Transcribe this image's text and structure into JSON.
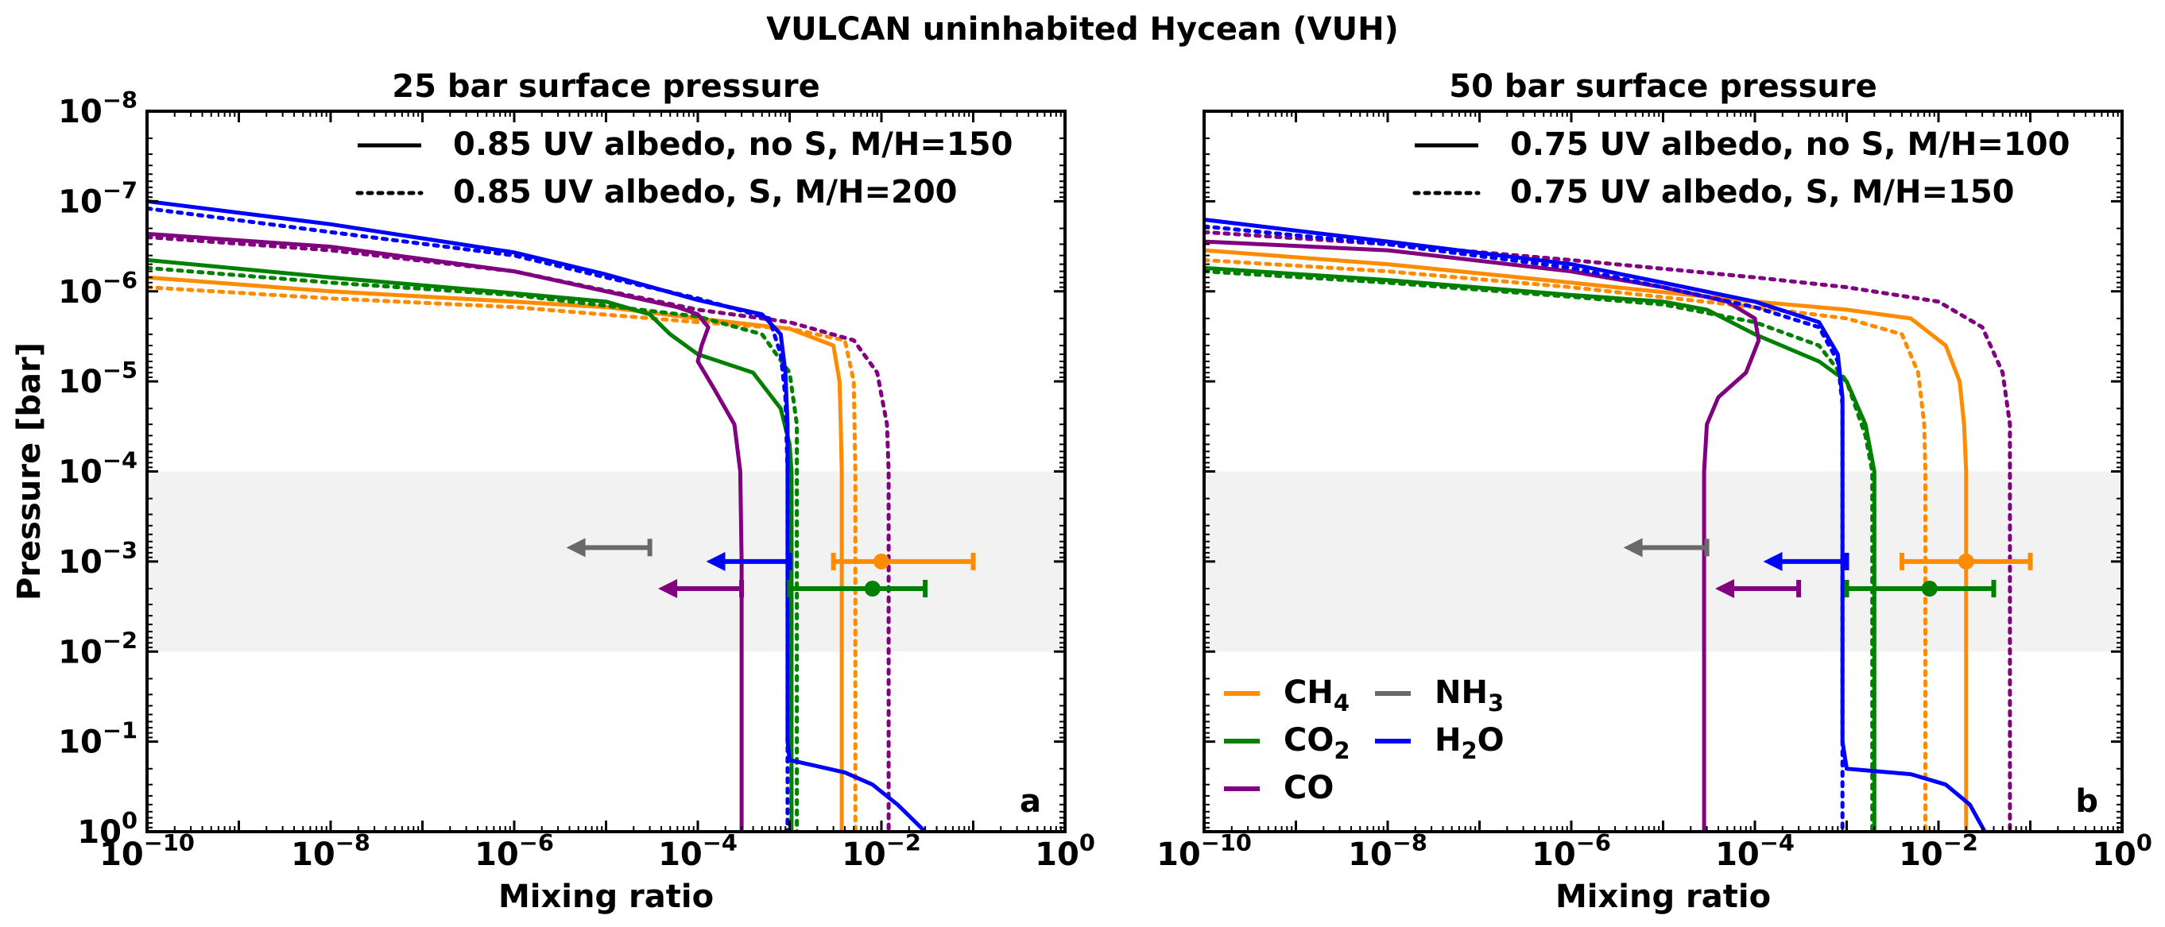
{
  "suptitle": "VULCAN uninhabited Hycean (VUH)",
  "chart_data": [
    {
      "type": "line",
      "title": "25 bar surface pressure",
      "panel_label": "a",
      "xlabel": "Mixing ratio",
      "ylabel": "Pressure [bar]",
      "xscale": "log",
      "yscale": "log",
      "xlim": [
        1e-10,
        1
      ],
      "ylim": [
        1,
        1e-08
      ],
      "x_tick_exponents": [
        -10,
        -8,
        -6,
        -4,
        -2,
        0
      ],
      "y_tick_exponents": [
        -8,
        -7,
        -6,
        -5,
        -4,
        -3,
        -2,
        -1,
        0
      ],
      "shaded_pressure_band": [
        0.0001,
        0.01
      ],
      "style_legend": [
        {
          "style": "solid",
          "label": "0.85 UV albedo, no S, M/H=150"
        },
        {
          "style": "dotted",
          "label": "0.85 UV albedo, S, M/H=200"
        }
      ],
      "series": [
        {
          "species": "CH4",
          "style": "solid",
          "color": "#ff8c00",
          "points": [
            [
              1e-10,
              7e-07
            ],
            [
              1e-08,
              1e-06
            ],
            [
              1e-06,
              1.3e-06
            ],
            [
              1e-05,
              1.5e-06
            ],
            [
              0.0001,
              2e-06
            ],
            [
              0.001,
              2.6e-06
            ],
            [
              0.003,
              4e-06
            ],
            [
              0.0035,
              1e-05
            ],
            [
              0.0036,
              3e-05
            ],
            [
              0.0037,
              0.0001
            ],
            [
              0.0037,
              1
            ]
          ]
        },
        {
          "species": "CH4",
          "style": "dotted",
          "color": "#ff8c00",
          "points": [
            [
              1e-10,
              9e-07
            ],
            [
              1e-08,
              1.2e-06
            ],
            [
              1e-06,
              1.5e-06
            ],
            [
              0.0001,
              2.2e-06
            ],
            [
              0.001,
              2.6e-06
            ],
            [
              0.004,
              3.5e-06
            ],
            [
              0.005,
              1e-05
            ],
            [
              0.0052,
              0.0001
            ],
            [
              0.0052,
              1
            ]
          ]
        },
        {
          "species": "CO2",
          "style": "solid",
          "color": "#008000",
          "points": [
            [
              1e-10,
              4.5e-07
            ],
            [
              1e-08,
              7e-07
            ],
            [
              1e-06,
              1.05e-06
            ],
            [
              1e-05,
              1.3e-06
            ],
            [
              3e-05,
              1.8e-06
            ],
            [
              5e-05,
              3e-06
            ],
            [
              0.0001,
              5e-06
            ],
            [
              0.0004,
              8e-06
            ],
            [
              0.0008,
              2e-05
            ],
            [
              0.001,
              5e-05
            ],
            [
              0.00105,
              0.0001
            ],
            [
              0.00105,
              1
            ]
          ]
        },
        {
          "species": "CO2",
          "style": "dotted",
          "color": "#008000",
          "points": [
            [
              1e-10,
              5.5e-07
            ],
            [
              1e-08,
              8e-07
            ],
            [
              1e-06,
              1.1e-06
            ],
            [
              0.0001,
              1.9e-06
            ],
            [
              0.0005,
              3e-06
            ],
            [
              0.001,
              8e-06
            ],
            [
              0.0012,
              3e-05
            ],
            [
              0.0012,
              0.0001
            ],
            [
              0.0012,
              1
            ]
          ]
        },
        {
          "species": "CO",
          "style": "solid",
          "color": "#800080",
          "points": [
            [
              1e-10,
              2.3e-07
            ],
            [
              1e-08,
              3.2e-07
            ],
            [
              1e-06,
              6e-07
            ],
            [
              1e-05,
              1e-06
            ],
            [
              6e-05,
              1.5e-06
            ],
            [
              0.0001,
              1.8e-06
            ],
            [
              0.00013,
              2.5e-06
            ],
            [
              0.00011,
              4e-06
            ],
            [
              0.0001,
              6e-06
            ],
            [
              0.00015,
              1.2e-05
            ],
            [
              0.00025,
              3e-05
            ],
            [
              0.00029,
              0.0001
            ],
            [
              0.0003,
              0.001
            ],
            [
              0.0003,
              1
            ]
          ]
        },
        {
          "species": "CO",
          "style": "dotted",
          "color": "#800080",
          "points": [
            [
              1e-10,
              2.5e-07
            ],
            [
              1e-08,
              3.5e-07
            ],
            [
              1e-06,
              6e-07
            ],
            [
              0.0001,
              1.6e-06
            ],
            [
              0.001,
              2.2e-06
            ],
            [
              0.005,
              3.5e-06
            ],
            [
              0.009,
              8e-06
            ],
            [
              0.0115,
              3e-05
            ],
            [
              0.012,
              0.0001
            ],
            [
              0.012,
              1
            ]
          ]
        },
        {
          "species": "H2O",
          "style": "solid",
          "color": "#0000ff",
          "points": [
            [
              1e-10,
              1e-07
            ],
            [
              1e-08,
              1.8e-07
            ],
            [
              1e-06,
              3.7e-07
            ],
            [
              1e-05,
              6.5e-07
            ],
            [
              0.0001,
              1.25e-06
            ],
            [
              0.0005,
              1.8e-06
            ],
            [
              0.0008,
              3e-06
            ],
            [
              0.0009,
              8e-06
            ],
            [
              0.00095,
              3e-05
            ],
            [
              0.00095,
              0.0001
            ],
            [
              0.00095,
              0.1
            ],
            [
              0.001,
              0.16
            ],
            [
              0.004,
              0.22
            ],
            [
              0.008,
              0.3
            ],
            [
              0.015,
              0.5
            ],
            [
              0.03,
              1
            ]
          ]
        },
        {
          "species": "H2O",
          "style": "dotted",
          "color": "#0000ff",
          "points": [
            [
              1e-10,
              1.2e-07
            ],
            [
              1e-08,
              2.2e-07
            ],
            [
              1e-06,
              4e-07
            ],
            [
              1e-05,
              7e-07
            ],
            [
              0.0001,
              1.2e-06
            ],
            [
              0.0006,
              2e-06
            ],
            [
              0.0008,
              5e-06
            ],
            [
              0.0009,
              1.5e-05
            ],
            [
              0.00095,
              0.0001
            ],
            [
              0.00095,
              1
            ]
          ]
        }
      ],
      "observations": [
        {
          "species": "CH4",
          "type": "errorbar",
          "x": 0.01,
          "xerr": [
            0.003,
            0.1
          ],
          "y": 0.001
        },
        {
          "species": "CO2",
          "type": "errorbar",
          "x": 0.008,
          "xerr": [
            0.001,
            0.03
          ],
          "y": 0.002
        },
        {
          "species": "H2O",
          "type": "upper_limit",
          "x": 0.001,
          "y": 0.001
        },
        {
          "species": "CO",
          "type": "upper_limit",
          "x": 0.0003,
          "y": 0.002
        },
        {
          "species": "NH3",
          "type": "upper_limit",
          "x": 3e-05,
          "y": 0.0007
        }
      ]
    },
    {
      "type": "line",
      "title": "50 bar surface pressure",
      "panel_label": "b",
      "xlabel": "Mixing ratio",
      "xscale": "log",
      "yscale": "log",
      "xlim": [
        1e-10,
        1
      ],
      "ylim": [
        1,
        1e-08
      ],
      "x_tick_exponents": [
        -10,
        -8,
        -6,
        -4,
        -2,
        0
      ],
      "shaded_pressure_band": [
        0.0001,
        0.01
      ],
      "style_legend": [
        {
          "style": "solid",
          "label": "0.75 UV albedo, no S, M/H=100"
        },
        {
          "style": "dotted",
          "label": "0.75 UV albedo, S, M/H=150"
        }
      ],
      "species_legend": [
        {
          "species": "CH4",
          "base": "CH",
          "sub": "4",
          "color": "#ff8c00"
        },
        {
          "species": "NH3",
          "base": "NH",
          "sub": "3",
          "color": "#696969"
        },
        {
          "species": "CO2",
          "base": "CO",
          "sub": "2",
          "color": "#008000"
        },
        {
          "species": "H2O",
          "base": "H",
          "sub": "2",
          "tail": "O",
          "color": "#0000ff"
        },
        {
          "species": "CO",
          "base": "CO",
          "sub": "",
          "color": "#800080"
        }
      ],
      "series": [
        {
          "species": "CH4",
          "style": "solid",
          "color": "#ff8c00",
          "points": [
            [
              1e-10,
              3.5e-07
            ],
            [
              1e-08,
              5e-07
            ],
            [
              1e-06,
              8e-07
            ],
            [
              0.0001,
              1.3e-06
            ],
            [
              0.001,
              1.6e-06
            ],
            [
              0.005,
              2e-06
            ],
            [
              0.012,
              4e-06
            ],
            [
              0.017,
              1e-05
            ],
            [
              0.019,
              3e-05
            ],
            [
              0.02,
              0.0001
            ],
            [
              0.02,
              1
            ]
          ]
        },
        {
          "species": "CH4",
          "style": "dotted",
          "color": "#ff8c00",
          "points": [
            [
              1e-10,
              4.5e-07
            ],
            [
              1e-08,
              6e-07
            ],
            [
              1e-06,
              9e-07
            ],
            [
              0.0001,
              1.5e-06
            ],
            [
              0.001,
              2e-06
            ],
            [
              0.004,
              3e-06
            ],
            [
              0.006,
              8e-06
            ],
            [
              0.007,
              3e-05
            ],
            [
              0.0072,
              0.0001
            ],
            [
              0.0072,
              1
            ]
          ]
        },
        {
          "species": "CO2",
          "style": "solid",
          "color": "#008000",
          "points": [
            [
              1e-10,
              5.5e-07
            ],
            [
              1e-08,
              7.5e-07
            ],
            [
              1e-06,
              1.1e-06
            ],
            [
              1e-05,
              1.3e-06
            ],
            [
              3e-05,
              1.6e-06
            ],
            [
              0.0001,
              3e-06
            ],
            [
              0.0005,
              6e-06
            ],
            [
              0.001,
              1e-05
            ],
            [
              0.0016,
              3e-05
            ],
            [
              0.002,
              0.0001
            ],
            [
              0.002,
              1
            ]
          ]
        },
        {
          "species": "CO2",
          "style": "dotted",
          "color": "#008000",
          "points": [
            [
              1e-10,
              6e-07
            ],
            [
              1e-08,
              8e-07
            ],
            [
              1e-06,
              1.15e-06
            ],
            [
              1e-05,
              1.4e-06
            ],
            [
              0.0001,
              2.2e-06
            ],
            [
              0.0005,
              4e-06
            ],
            [
              0.001,
              1e-05
            ],
            [
              0.0016,
              4e-05
            ],
            [
              0.0019,
              0.0001
            ],
            [
              0.0019,
              1
            ]
          ]
        },
        {
          "species": "CO",
          "style": "solid",
          "color": "#800080",
          "points": [
            [
              1e-10,
              2.8e-07
            ],
            [
              1e-08,
              3.5e-07
            ],
            [
              1e-06,
              6e-07
            ],
            [
              1e-05,
              9e-07
            ],
            [
              5e-05,
              1.3e-06
            ],
            [
              0.0001,
              2e-06
            ],
            [
              0.00011,
              3.5e-06
            ],
            [
              8e-05,
              8e-06
            ],
            [
              4e-05,
              1.5e-05
            ],
            [
              3e-05,
              3e-05
            ],
            [
              2.8e-05,
              0.0001
            ],
            [
              2.8e-05,
              1
            ]
          ]
        },
        {
          "species": "CO",
          "style": "dotted",
          "color": "#800080",
          "points": [
            [
              1e-10,
              2.2e-07
            ],
            [
              1e-08,
              3e-07
            ],
            [
              1e-06,
              4.5e-07
            ],
            [
              0.0001,
              7e-07
            ],
            [
              0.001,
              9e-07
            ],
            [
              0.01,
              1.3e-06
            ],
            [
              0.03,
              2.5e-06
            ],
            [
              0.05,
              8e-06
            ],
            [
              0.06,
              3e-05
            ],
            [
              0.06,
              0.0001
            ],
            [
              0.06,
              1
            ]
          ]
        },
        {
          "species": "H2O",
          "style": "solid",
          "color": "#0000ff",
          "points": [
            [
              1e-10,
              1.6e-07
            ],
            [
              1e-08,
              2.8e-07
            ],
            [
              1e-06,
              5e-07
            ],
            [
              1e-05,
              8e-07
            ],
            [
              0.0001,
              1.3e-06
            ],
            [
              0.0005,
              2.2e-06
            ],
            [
              0.0008,
              5e-06
            ],
            [
              0.0009,
              1.5e-05
            ],
            [
              0.0009,
              0.0001
            ],
            [
              0.0009,
              0.1
            ],
            [
              0.001,
              0.2
            ],
            [
              0.005,
              0.23
            ],
            [
              0.012,
              0.3
            ],
            [
              0.022,
              0.5
            ],
            [
              0.032,
              1
            ]
          ]
        },
        {
          "species": "H2O",
          "style": "dotted",
          "color": "#0000ff",
          "points": [
            [
              1e-10,
              1.9e-07
            ],
            [
              1e-08,
              3e-07
            ],
            [
              1e-06,
              5.5e-07
            ],
            [
              1e-05,
              9e-07
            ],
            [
              0.0001,
              1.5e-06
            ],
            [
              0.0005,
              2.5e-06
            ],
            [
              0.0008,
              6e-06
            ],
            [
              0.0009,
              1.8e-05
            ],
            [
              0.0009,
              0.0001
            ],
            [
              0.0009,
              1
            ]
          ]
        }
      ],
      "observations": [
        {
          "species": "CH4",
          "type": "errorbar",
          "x": 0.02,
          "xerr": [
            0.004,
            0.1
          ],
          "y": 0.001
        },
        {
          "species": "CO2",
          "type": "errorbar",
          "x": 0.008,
          "xerr": [
            0.001,
            0.04
          ],
          "y": 0.002
        },
        {
          "species": "H2O",
          "type": "upper_limit",
          "x": 0.001,
          "y": 0.001
        },
        {
          "species": "CO",
          "type": "upper_limit",
          "x": 0.0003,
          "y": 0.002
        },
        {
          "species": "NH3",
          "type": "upper_limit",
          "x": 3e-05,
          "y": 0.0007
        }
      ]
    }
  ]
}
